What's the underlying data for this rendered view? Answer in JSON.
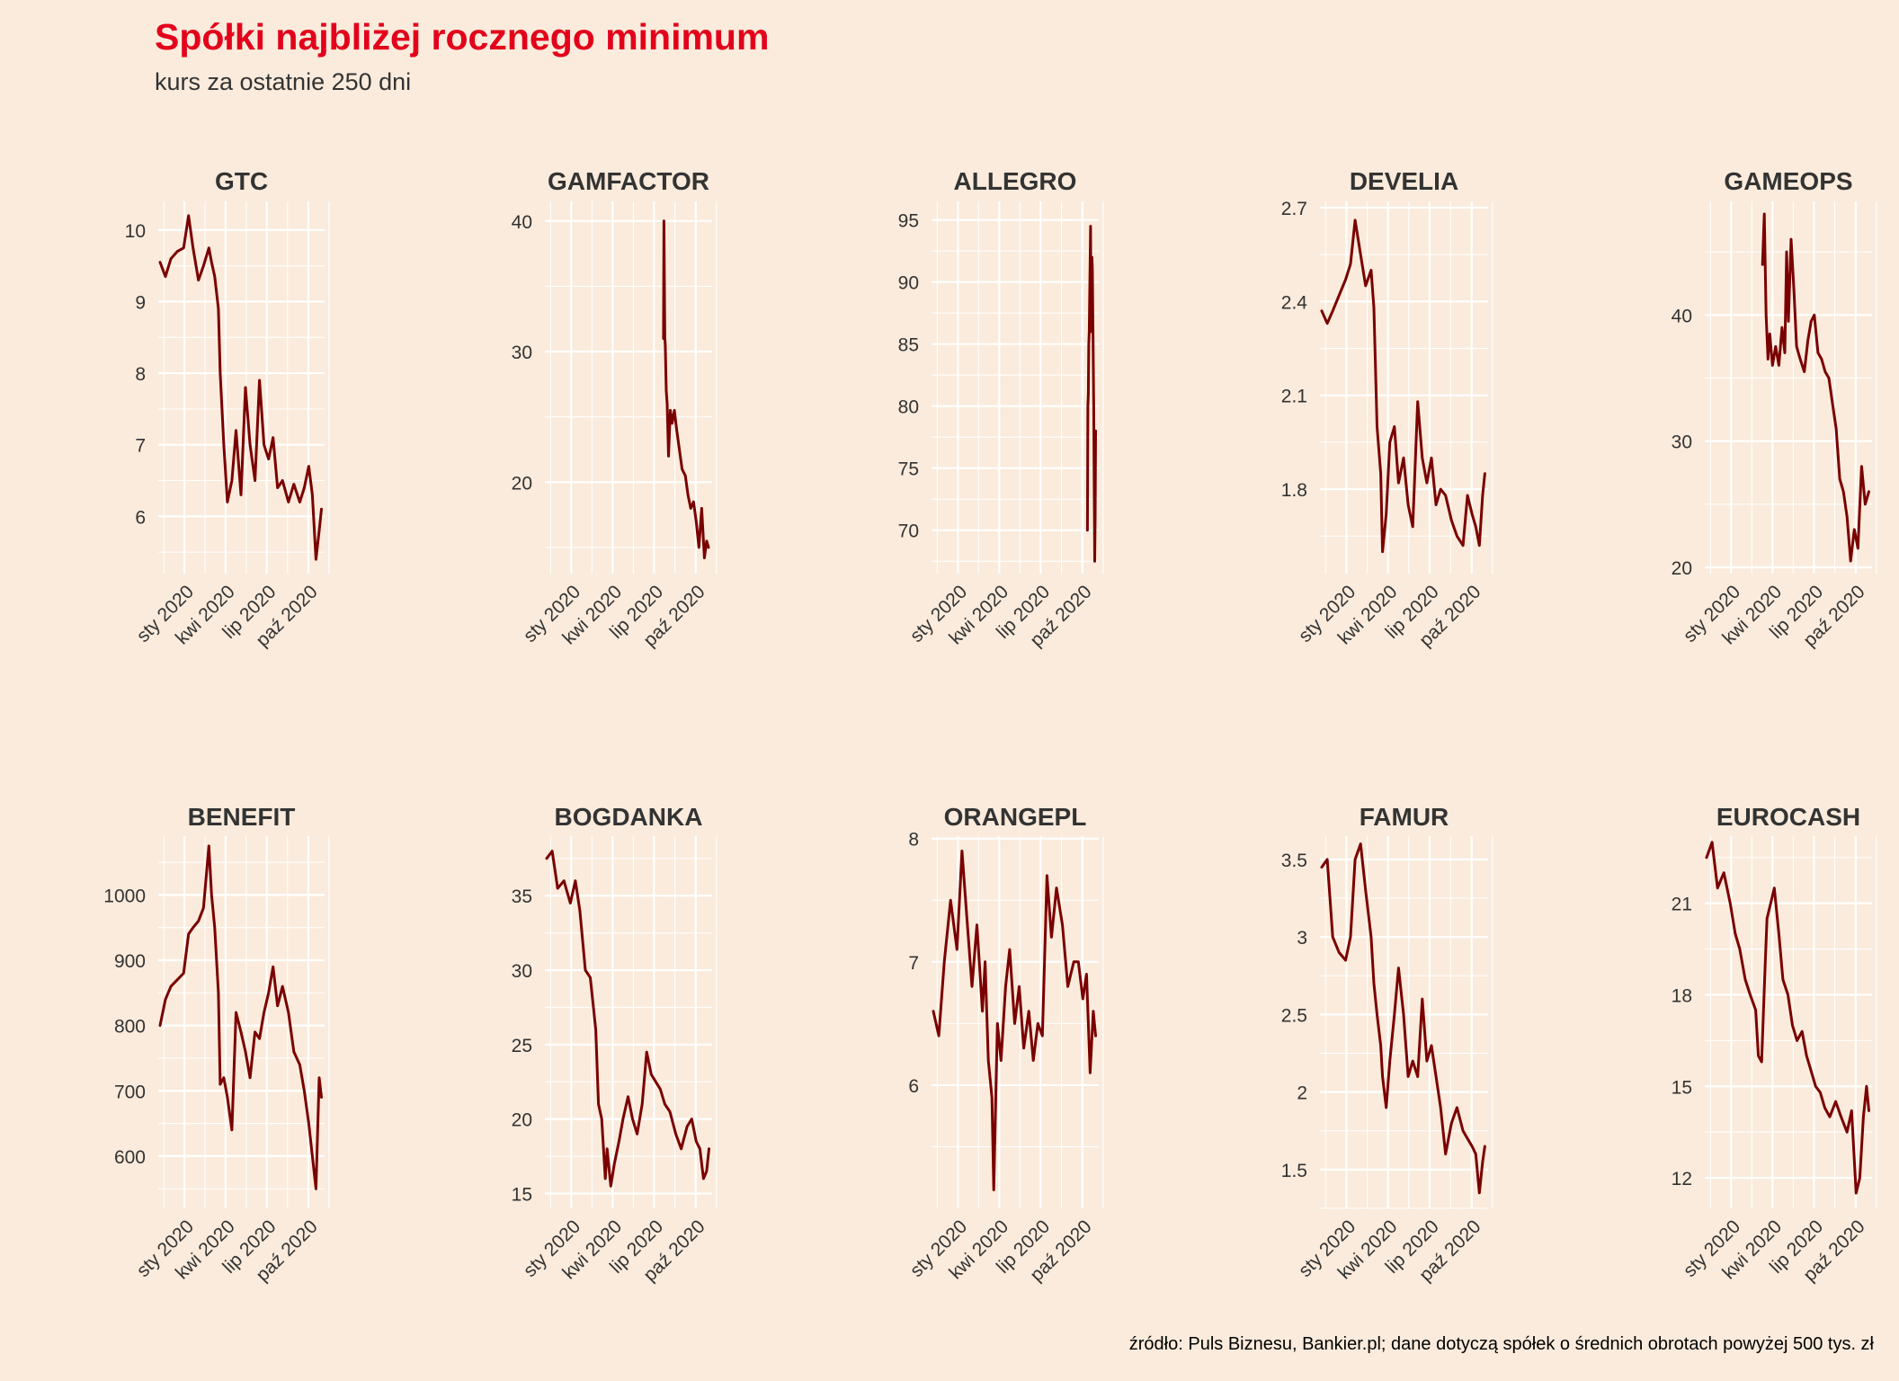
{
  "header": {
    "title": "Spółki najbliżej rocznego minimum",
    "subtitle": "kurs za ostatnie 250 dni"
  },
  "footer": {
    "source": "źródło: Puls Biznesu, Bankier.pl; dane dotyczą spółek o średnich obrotach powyżej 500 tys. zł"
  },
  "colors": {
    "background": "#faebdc",
    "title": "#e3001b",
    "line": "#7a0000",
    "grid": "#ffffff",
    "text": "#333333"
  },
  "chart_data": [
    {
      "type": "line",
      "title": "GTC",
      "x_range": [
        "2019-11-04",
        "2020-11-06"
      ],
      "x_ticks": [
        {
          "date": "2020-01-01",
          "label": "sty 2020"
        },
        {
          "date": "2020-04-01",
          "label": "kwi 2020"
        },
        {
          "date": "2020-07-01",
          "label": "lip 2020"
        },
        {
          "date": "2020-10-01",
          "label": "paź 2020"
        }
      ],
      "y_ticks": [
        6,
        7,
        8,
        9,
        10
      ],
      "ylim": [
        5.2,
        10.4
      ],
      "grid": true,
      "x": [
        "2019-11-08",
        "2019-11-20",
        "2019-12-02",
        "2019-12-16",
        "2019-12-30",
        "2020-01-10",
        "2020-01-20",
        "2020-02-01",
        "2020-02-12",
        "2020-02-24",
        "2020-03-01",
        "2020-03-08",
        "2020-03-16",
        "2020-03-20",
        "2020-03-28",
        "2020-04-05",
        "2020-04-15",
        "2020-04-24",
        "2020-05-05",
        "2020-05-15",
        "2020-05-25",
        "2020-06-05",
        "2020-06-15",
        "2020-06-25",
        "2020-07-05",
        "2020-07-15",
        "2020-07-25",
        "2020-08-05",
        "2020-08-18",
        "2020-08-30",
        "2020-09-12",
        "2020-09-22",
        "2020-10-02",
        "2020-10-10",
        "2020-10-18",
        "2020-10-25",
        "2020-10-30"
      ],
      "values": [
        9.55,
        9.35,
        9.6,
        9.7,
        9.75,
        10.2,
        9.75,
        9.3,
        9.5,
        9.75,
        9.55,
        9.35,
        8.9,
        8.0,
        7.0,
        6.2,
        6.5,
        7.2,
        6.3,
        7.8,
        7.0,
        6.5,
        7.9,
        7.0,
        6.8,
        7.1,
        6.4,
        6.5,
        6.2,
        6.45,
        6.2,
        6.4,
        6.7,
        6.3,
        5.4,
        5.8,
        6.1
      ]
    },
    {
      "type": "line",
      "title": "GAMFACTOR",
      "x_range": [
        "2019-11-04",
        "2020-11-06"
      ],
      "x_ticks": [
        {
          "date": "2020-01-01",
          "label": "sty 2020"
        },
        {
          "date": "2020-04-01",
          "label": "kwi 2020"
        },
        {
          "date": "2020-07-01",
          "label": "lip 2020"
        },
        {
          "date": "2020-10-01",
          "label": "paź 2020"
        }
      ],
      "y_ticks": [
        20,
        30,
        40
      ],
      "ylim": [
        13,
        41.5
      ],
      "grid": true,
      "x": [
        "2020-07-22",
        "2020-07-23",
        "2020-07-25",
        "2020-07-26",
        "2020-07-28",
        "2020-07-30",
        "2020-08-02",
        "2020-08-06",
        "2020-08-10",
        "2020-08-15",
        "2020-08-20",
        "2020-08-26",
        "2020-09-01",
        "2020-09-08",
        "2020-09-14",
        "2020-09-20",
        "2020-09-26",
        "2020-10-02",
        "2020-10-08",
        "2020-10-14",
        "2020-10-20",
        "2020-10-25",
        "2020-10-29"
      ],
      "values": [
        31.0,
        40.0,
        31.0,
        30.5,
        27.0,
        26.0,
        22.0,
        25.5,
        24.5,
        25.5,
        24.0,
        22.5,
        21.0,
        20.5,
        19.0,
        18.0,
        18.5,
        17.0,
        15.0,
        18.0,
        14.2,
        15.5,
        15.0
      ]
    },
    {
      "type": "line",
      "title": "ALLEGRO",
      "x_range": [
        "2019-11-04",
        "2020-11-06"
      ],
      "x_ticks": [
        {
          "date": "2020-01-01",
          "label": "sty 2020"
        },
        {
          "date": "2020-04-01",
          "label": "kwi 2020"
        },
        {
          "date": "2020-07-01",
          "label": "lip 2020"
        },
        {
          "date": "2020-10-01",
          "label": "paź 2020"
        }
      ],
      "y_ticks": [
        70,
        75,
        80,
        85,
        90,
        95
      ],
      "ylim": [
        66.5,
        96.5
      ],
      "grid": true,
      "x": [
        "2020-10-12",
        "2020-10-13",
        "2020-10-14",
        "2020-10-15",
        "2020-10-16",
        "2020-10-19",
        "2020-10-20",
        "2020-10-21",
        "2020-10-22",
        "2020-10-23",
        "2020-10-26",
        "2020-10-27",
        "2020-10-28",
        "2020-10-29",
        "2020-10-30"
      ],
      "values": [
        70.0,
        80.0,
        81.0,
        85.0,
        86.0,
        94.5,
        86.0,
        88.0,
        92.0,
        91.0,
        80.0,
        74.0,
        67.5,
        71.0,
        78.0
      ]
    },
    {
      "type": "line",
      "title": "DEVELIA",
      "x_range": [
        "2019-11-04",
        "2020-11-06"
      ],
      "x_ticks": [
        {
          "date": "2020-01-01",
          "label": "sty 2020"
        },
        {
          "date": "2020-04-01",
          "label": "kwi 2020"
        },
        {
          "date": "2020-07-01",
          "label": "lip 2020"
        },
        {
          "date": "2020-10-01",
          "label": "paź 2020"
        }
      ],
      "y_ticks": [
        1.8,
        2.1,
        2.4,
        2.7
      ],
      "ylim": [
        1.53,
        2.72
      ],
      "grid": true,
      "x": [
        "2019-11-08",
        "2019-11-20",
        "2019-12-02",
        "2019-12-16",
        "2019-12-30",
        "2020-01-10",
        "2020-01-20",
        "2020-02-01",
        "2020-02-12",
        "2020-02-24",
        "2020-03-01",
        "2020-03-08",
        "2020-03-16",
        "2020-03-20",
        "2020-03-28",
        "2020-04-05",
        "2020-04-15",
        "2020-04-24",
        "2020-05-05",
        "2020-05-15",
        "2020-05-25",
        "2020-06-05",
        "2020-06-15",
        "2020-06-25",
        "2020-07-05",
        "2020-07-15",
        "2020-07-25",
        "2020-08-05",
        "2020-08-18",
        "2020-08-30",
        "2020-09-12",
        "2020-09-22",
        "2020-10-02",
        "2020-10-10",
        "2020-10-18",
        "2020-10-25",
        "2020-10-30"
      ],
      "values": [
        2.37,
        2.33,
        2.37,
        2.42,
        2.47,
        2.52,
        2.66,
        2.55,
        2.45,
        2.5,
        2.38,
        2.0,
        1.85,
        1.6,
        1.72,
        1.95,
        2.0,
        1.82,
        1.9,
        1.75,
        1.68,
        2.08,
        1.9,
        1.82,
        1.9,
        1.75,
        1.8,
        1.78,
        1.7,
        1.65,
        1.62,
        1.78,
        1.72,
        1.68,
        1.62,
        1.78,
        1.85
      ]
    },
    {
      "type": "line",
      "title": "GAMEOPS",
      "x_range": [
        "2019-11-04",
        "2020-11-06"
      ],
      "x_ticks": [
        {
          "date": "2020-01-01",
          "label": "sty 2020"
        },
        {
          "date": "2020-04-01",
          "label": "kwi 2020"
        },
        {
          "date": "2020-07-01",
          "label": "lip 2020"
        },
        {
          "date": "2020-10-01",
          "label": "paź 2020"
        }
      ],
      "y_ticks": [
        20,
        30,
        40
      ],
      "ylim": [
        19.5,
        49
      ],
      "grid": true,
      "x": [
        "2020-03-10",
        "2020-03-14",
        "2020-03-18",
        "2020-03-22",
        "2020-03-26",
        "2020-04-01",
        "2020-04-08",
        "2020-04-15",
        "2020-04-22",
        "2020-04-28",
        "2020-05-02",
        "2020-05-06",
        "2020-05-12",
        "2020-05-18",
        "2020-05-24",
        "2020-06-01",
        "2020-06-10",
        "2020-06-18",
        "2020-06-25",
        "2020-07-02",
        "2020-07-10",
        "2020-07-18",
        "2020-07-26",
        "2020-08-03",
        "2020-08-11",
        "2020-08-19",
        "2020-08-27",
        "2020-09-04",
        "2020-09-12",
        "2020-09-20",
        "2020-09-28",
        "2020-10-06",
        "2020-10-14",
        "2020-10-22",
        "2020-10-30"
      ],
      "values": [
        44.0,
        48.0,
        40.0,
        36.5,
        38.5,
        36.0,
        37.5,
        36.0,
        39.0,
        37.0,
        45.0,
        39.5,
        46.0,
        42.0,
        37.5,
        36.5,
        35.5,
        38.0,
        39.5,
        40.0,
        37.0,
        36.5,
        35.5,
        35.0,
        33.0,
        31.0,
        27.0,
        26.0,
        24.0,
        20.5,
        23.0,
        21.5,
        28.0,
        25.0,
        26.0
      ]
    },
    {
      "type": "line",
      "title": "BENEFIT",
      "x_range": [
        "2019-11-04",
        "2020-11-06"
      ],
      "x_ticks": [
        {
          "date": "2020-01-01",
          "label": "sty 2020"
        },
        {
          "date": "2020-04-01",
          "label": "kwi 2020"
        },
        {
          "date": "2020-07-01",
          "label": "lip 2020"
        },
        {
          "date": "2020-10-01",
          "label": "paź 2020"
        }
      ],
      "y_ticks": [
        600,
        700,
        800,
        900,
        1000
      ],
      "ylim": [
        520,
        1090
      ],
      "grid": true,
      "x": [
        "2019-11-08",
        "2019-11-20",
        "2019-12-02",
        "2019-12-16",
        "2019-12-30",
        "2020-01-10",
        "2020-01-20",
        "2020-02-01",
        "2020-02-12",
        "2020-02-24",
        "2020-03-01",
        "2020-03-08",
        "2020-03-16",
        "2020-03-20",
        "2020-03-28",
        "2020-04-05",
        "2020-04-15",
        "2020-04-24",
        "2020-05-05",
        "2020-05-15",
        "2020-05-25",
        "2020-06-05",
        "2020-06-15",
        "2020-06-25",
        "2020-07-05",
        "2020-07-15",
        "2020-07-25",
        "2020-08-05",
        "2020-08-18",
        "2020-08-30",
        "2020-09-12",
        "2020-09-22",
        "2020-10-02",
        "2020-10-10",
        "2020-10-18",
        "2020-10-25",
        "2020-10-30"
      ],
      "values": [
        800,
        840,
        860,
        870,
        880,
        940,
        950,
        960,
        980,
        1075,
        1000,
        950,
        850,
        710,
        720,
        690,
        640,
        820,
        790,
        760,
        720,
        790,
        780,
        820,
        850,
        890,
        830,
        860,
        820,
        760,
        740,
        700,
        650,
        600,
        550,
        720,
        690
      ]
    },
    {
      "type": "line",
      "title": "BOGDANKA",
      "x_range": [
        "2019-11-04",
        "2020-11-06"
      ],
      "x_ticks": [
        {
          "date": "2020-01-01",
          "label": "sty 2020"
        },
        {
          "date": "2020-04-01",
          "label": "kwi 2020"
        },
        {
          "date": "2020-07-01",
          "label": "lip 2020"
        },
        {
          "date": "2020-10-01",
          "label": "paź 2020"
        }
      ],
      "y_ticks": [
        15,
        20,
        25,
        30,
        35
      ],
      "ylim": [
        14,
        39
      ],
      "grid": true,
      "x": [
        "2019-11-08",
        "2019-11-20",
        "2019-12-02",
        "2019-12-16",
        "2019-12-30",
        "2020-01-10",
        "2020-01-20",
        "2020-02-01",
        "2020-02-12",
        "2020-02-24",
        "2020-03-01",
        "2020-03-08",
        "2020-03-16",
        "2020-03-20",
        "2020-03-28",
        "2020-04-05",
        "2020-04-15",
        "2020-04-24",
        "2020-05-05",
        "2020-05-15",
        "2020-05-25",
        "2020-06-05",
        "2020-06-15",
        "2020-06-25",
        "2020-07-05",
        "2020-07-15",
        "2020-07-25",
        "2020-08-05",
        "2020-08-18",
        "2020-08-30",
        "2020-09-12",
        "2020-09-22",
        "2020-10-02",
        "2020-10-10",
        "2020-10-18",
        "2020-10-25",
        "2020-10-30"
      ],
      "values": [
        37.5,
        38.0,
        35.5,
        36.0,
        34.5,
        36.0,
        34.0,
        30.0,
        29.5,
        26.0,
        21.0,
        20.0,
        16.0,
        18.0,
        15.5,
        17.0,
        18.5,
        20.0,
        21.5,
        20.0,
        19.0,
        21.0,
        24.5,
        23.0,
        22.5,
        22.0,
        21.0,
        20.5,
        19.0,
        18.0,
        19.5,
        20.0,
        18.5,
        18.0,
        16.0,
        16.5,
        18.0
      ]
    },
    {
      "type": "line",
      "title": "ORANGEPL",
      "x_range": [
        "2019-11-04",
        "2020-11-06"
      ],
      "x_ticks": [
        {
          "date": "2020-01-01",
          "label": "sty 2020"
        },
        {
          "date": "2020-04-01",
          "label": "kwi 2020"
        },
        {
          "date": "2020-07-01",
          "label": "lip 2020"
        },
        {
          "date": "2020-10-01",
          "label": "paź 2020"
        }
      ],
      "y_ticks": [
        6,
        7,
        8
      ],
      "ylim": [
        5.0,
        8.02
      ],
      "grid": true,
      "x": [
        "2019-11-08",
        "2019-11-20",
        "2019-12-02",
        "2019-12-16",
        "2019-12-30",
        "2020-01-10",
        "2020-01-20",
        "2020-02-01",
        "2020-02-12",
        "2020-02-24",
        "2020-03-01",
        "2020-03-08",
        "2020-03-16",
        "2020-03-20",
        "2020-03-28",
        "2020-04-05",
        "2020-04-15",
        "2020-04-24",
        "2020-05-05",
        "2020-05-15",
        "2020-05-25",
        "2020-06-05",
        "2020-06-15",
        "2020-06-25",
        "2020-07-05",
        "2020-07-15",
        "2020-07-25",
        "2020-08-05",
        "2020-08-18",
        "2020-08-30",
        "2020-09-12",
        "2020-09-22",
        "2020-10-02",
        "2020-10-10",
        "2020-10-18",
        "2020-10-25",
        "2020-10-30"
      ],
      "values": [
        6.6,
        6.4,
        7.0,
        7.5,
        7.1,
        7.9,
        7.4,
        6.8,
        7.3,
        6.6,
        7.0,
        6.2,
        5.9,
        5.15,
        6.5,
        6.2,
        6.8,
        7.1,
        6.5,
        6.8,
        6.3,
        6.6,
        6.2,
        6.5,
        6.4,
        7.7,
        7.2,
        7.6,
        7.3,
        6.8,
        7.0,
        7.0,
        6.7,
        6.9,
        6.1,
        6.6,
        6.4
      ]
    },
    {
      "type": "line",
      "title": "FAMUR",
      "x_range": [
        "2019-11-04",
        "2020-11-06"
      ],
      "x_ticks": [
        {
          "date": "2020-01-01",
          "label": "sty 2020"
        },
        {
          "date": "2020-04-01",
          "label": "kwi 2020"
        },
        {
          "date": "2020-07-01",
          "label": "lip 2020"
        },
        {
          "date": "2020-10-01",
          "label": "paź 2020"
        }
      ],
      "y_ticks": [
        1.5,
        2.0,
        2.5,
        3.0,
        3.5
      ],
      "ylim": [
        1.25,
        3.65
      ],
      "grid": true,
      "x": [
        "2019-11-08",
        "2019-11-20",
        "2019-12-02",
        "2019-12-16",
        "2019-12-30",
        "2020-01-10",
        "2020-01-20",
        "2020-02-01",
        "2020-02-12",
        "2020-02-24",
        "2020-03-01",
        "2020-03-08",
        "2020-03-16",
        "2020-03-20",
        "2020-03-28",
        "2020-04-05",
        "2020-04-15",
        "2020-04-24",
        "2020-05-05",
        "2020-05-15",
        "2020-05-25",
        "2020-06-05",
        "2020-06-15",
        "2020-06-25",
        "2020-07-05",
        "2020-07-15",
        "2020-07-25",
        "2020-08-05",
        "2020-08-18",
        "2020-08-30",
        "2020-09-12",
        "2020-09-22",
        "2020-10-02",
        "2020-10-10",
        "2020-10-18",
        "2020-10-25",
        "2020-10-30"
      ],
      "values": [
        3.45,
        3.5,
        3.0,
        2.9,
        2.85,
        3.0,
        3.5,
        3.6,
        3.3,
        3.0,
        2.7,
        2.5,
        2.3,
        2.1,
        1.9,
        2.2,
        2.5,
        2.8,
        2.5,
        2.1,
        2.2,
        2.1,
        2.6,
        2.2,
        2.3,
        2.1,
        1.9,
        1.6,
        1.8,
        1.9,
        1.75,
        1.7,
        1.65,
        1.6,
        1.35,
        1.55,
        1.65
      ]
    },
    {
      "type": "line",
      "title": "EUROCASH",
      "x_range": [
        "2019-11-04",
        "2020-11-06"
      ],
      "x_ticks": [
        {
          "date": "2020-01-01",
          "label": "sty 2020"
        },
        {
          "date": "2020-04-01",
          "label": "kwi 2020"
        },
        {
          "date": "2020-07-01",
          "label": "lip 2020"
        },
        {
          "date": "2020-10-01",
          "label": "paź 2020"
        }
      ],
      "y_ticks": [
        12,
        15,
        18,
        21
      ],
      "ylim": [
        11.0,
        23.2
      ],
      "grid": true,
      "x": [
        "2019-11-08",
        "2019-11-20",
        "2019-12-02",
        "2019-12-16",
        "2019-12-30",
        "2020-01-10",
        "2020-01-20",
        "2020-02-01",
        "2020-02-12",
        "2020-02-24",
        "2020-03-01",
        "2020-03-08",
        "2020-03-16",
        "2020-03-20",
        "2020-03-28",
        "2020-04-05",
        "2020-04-15",
        "2020-04-24",
        "2020-05-05",
        "2020-05-15",
        "2020-05-25",
        "2020-06-05",
        "2020-06-15",
        "2020-06-25",
        "2020-07-05",
        "2020-07-15",
        "2020-07-25",
        "2020-08-05",
        "2020-08-18",
        "2020-08-30",
        "2020-09-12",
        "2020-09-22",
        "2020-10-02",
        "2020-10-10",
        "2020-10-18",
        "2020-10-25",
        "2020-10-30"
      ],
      "values": [
        22.5,
        23.0,
        21.5,
        22.0,
        21.0,
        20.0,
        19.5,
        18.5,
        18.0,
        17.5,
        16.0,
        15.8,
        19.0,
        20.5,
        21.0,
        21.5,
        20.0,
        18.5,
        18.0,
        17.0,
        16.5,
        16.8,
        16.0,
        15.5,
        15.0,
        14.8,
        14.3,
        14.0,
        14.5,
        14.0,
        13.5,
        14.2,
        11.5,
        12.0,
        14.0,
        15.0,
        14.2
      ]
    }
  ]
}
